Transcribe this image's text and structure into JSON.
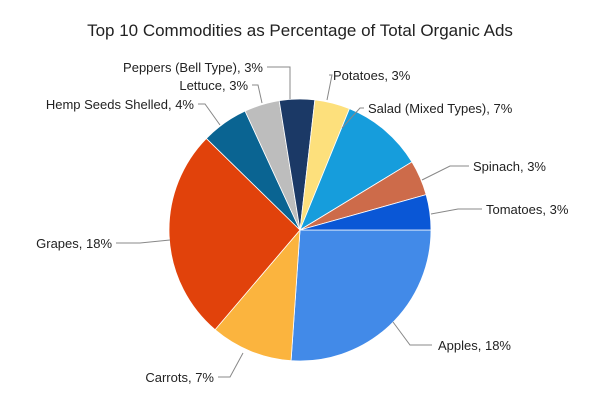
{
  "chart_data": {
    "type": "pie",
    "title": "Top 10 Commodities as Percentage of Total Organic Ads",
    "start_angle_deg": 90,
    "direction": "clockwise",
    "slices": [
      {
        "label": "Apples",
        "value": 18,
        "display": "Apples, 18%",
        "color": "#428ae8"
      },
      {
        "label": "Carrots",
        "value": 7,
        "display": "Carrots, 7%",
        "color": "#fbb43e"
      },
      {
        "label": "Grapes",
        "value": 18,
        "display": "Grapes, 18%",
        "color": "#e1420b"
      },
      {
        "label": "Hemp Seeds Shelled",
        "value": 4,
        "display": "Hemp Seeds Shelled, 4%",
        "color": "#0a6492"
      },
      {
        "label": "Lettuce",
        "value": 3,
        "display": "Lettuce, 3%",
        "color": "#bdbdbd"
      },
      {
        "label": "Peppers (Bell Type)",
        "value": 3,
        "display": "Peppers (Bell Type), 3%",
        "color": "#1b3966"
      },
      {
        "label": "Potatoes",
        "value": 3,
        "display": "Potatoes, 3%",
        "color": "#fde07c"
      },
      {
        "label": "Salad (Mixed Types)",
        "value": 7,
        "display": "Salad (Mixed Types), 7%",
        "color": "#169ddc"
      },
      {
        "label": "Spinach",
        "value": 3,
        "display": "Spinach, 3%",
        "color": "#cd6b4a"
      },
      {
        "label": "Tomatoes",
        "value": 3,
        "display": "Tomatoes, 3%",
        "color": "#0a57d6"
      }
    ]
  }
}
